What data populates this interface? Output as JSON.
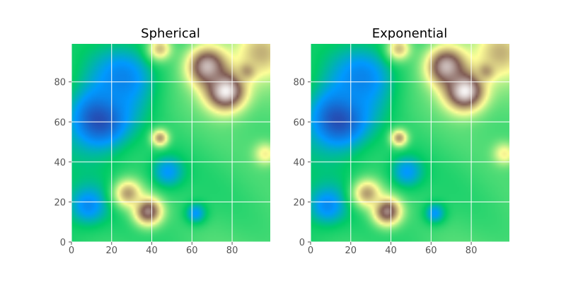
{
  "figure": {
    "background": "#ffffff"
  },
  "colormap": {
    "name": "terrain",
    "stops": [
      [
        0.0,
        "#333399"
      ],
      [
        0.15,
        "#0099ff"
      ],
      [
        0.25,
        "#00cc66"
      ],
      [
        0.5,
        "#ffff99"
      ],
      [
        0.75,
        "#805c54"
      ],
      [
        1.0,
        "#ffffff"
      ]
    ]
  },
  "chart_data": [
    {
      "type": "heatmap",
      "title": "Spherical",
      "xlabel": "",
      "ylabel": "",
      "xlim": [
        0,
        99
      ],
      "ylim": [
        0,
        99
      ],
      "xticks": [
        0,
        20,
        40,
        60,
        80
      ],
      "yticks": [
        0,
        20,
        40,
        60,
        80
      ],
      "grid": true,
      "grid_color": "#ffffff",
      "colormap": "terrain",
      "field_features": [
        {
          "kind": "low",
          "x": 14,
          "y": 62,
          "value": 0.02,
          "spread": 11
        },
        {
          "kind": "low",
          "x": 25,
          "y": 82,
          "value": 0.12,
          "spread": 13
        },
        {
          "kind": "low",
          "x": 8,
          "y": 18,
          "value": 0.13,
          "spread": 7
        },
        {
          "kind": "low",
          "x": 48,
          "y": 35,
          "value": 0.15,
          "spread": 6
        },
        {
          "kind": "low",
          "x": 62,
          "y": 14,
          "value": 0.15,
          "spread": 4
        },
        {
          "kind": "high",
          "x": 77,
          "y": 76,
          "value": 1.0,
          "spread": 7
        },
        {
          "kind": "high",
          "x": 68,
          "y": 88,
          "value": 0.9,
          "spread": 7
        },
        {
          "kind": "high",
          "x": 88,
          "y": 86,
          "value": 0.7,
          "spread": 3
        },
        {
          "kind": "high",
          "x": 38,
          "y": 15,
          "value": 0.82,
          "spread": 5
        },
        {
          "kind": "high",
          "x": 28,
          "y": 24,
          "value": 0.65,
          "spread": 5
        },
        {
          "kind": "high",
          "x": 44,
          "y": 52,
          "value": 0.66,
          "spread": 3
        },
        {
          "kind": "high",
          "x": 97,
          "y": 44,
          "value": 0.52,
          "spread": 4
        },
        {
          "kind": "high",
          "x": 95,
          "y": 95,
          "value": 0.62,
          "spread": 9
        },
        {
          "kind": "high",
          "x": 44,
          "y": 97,
          "value": 0.6,
          "spread": 4
        }
      ]
    },
    {
      "type": "heatmap",
      "title": "Exponential",
      "xlabel": "",
      "ylabel": "",
      "xlim": [
        0,
        99
      ],
      "ylim": [
        0,
        99
      ],
      "xticks": [
        0,
        20,
        40,
        60,
        80
      ],
      "yticks": [
        0,
        20,
        40,
        60,
        80
      ],
      "grid": true,
      "grid_color": "#ffffff",
      "colormap": "terrain",
      "field_features": [
        {
          "kind": "low",
          "x": 14,
          "y": 62,
          "value": 0.02,
          "spread": 11
        },
        {
          "kind": "low",
          "x": 25,
          "y": 82,
          "value": 0.12,
          "spread": 13
        },
        {
          "kind": "low",
          "x": 8,
          "y": 18,
          "value": 0.13,
          "spread": 7
        },
        {
          "kind": "low",
          "x": 48,
          "y": 35,
          "value": 0.15,
          "spread": 6
        },
        {
          "kind": "low",
          "x": 62,
          "y": 14,
          "value": 0.15,
          "spread": 4
        },
        {
          "kind": "high",
          "x": 77,
          "y": 76,
          "value": 1.0,
          "spread": 7
        },
        {
          "kind": "high",
          "x": 68,
          "y": 88,
          "value": 0.9,
          "spread": 7
        },
        {
          "kind": "high",
          "x": 88,
          "y": 86,
          "value": 0.7,
          "spread": 3
        },
        {
          "kind": "high",
          "x": 38,
          "y": 15,
          "value": 0.82,
          "spread": 5
        },
        {
          "kind": "high",
          "x": 28,
          "y": 24,
          "value": 0.65,
          "spread": 5
        },
        {
          "kind": "high",
          "x": 44,
          "y": 52,
          "value": 0.66,
          "spread": 3
        },
        {
          "kind": "high",
          "x": 97,
          "y": 44,
          "value": 0.52,
          "spread": 4
        },
        {
          "kind": "high",
          "x": 95,
          "y": 95,
          "value": 0.62,
          "spread": 9
        },
        {
          "kind": "high",
          "x": 44,
          "y": 97,
          "value": 0.6,
          "spread": 4
        }
      ]
    }
  ]
}
